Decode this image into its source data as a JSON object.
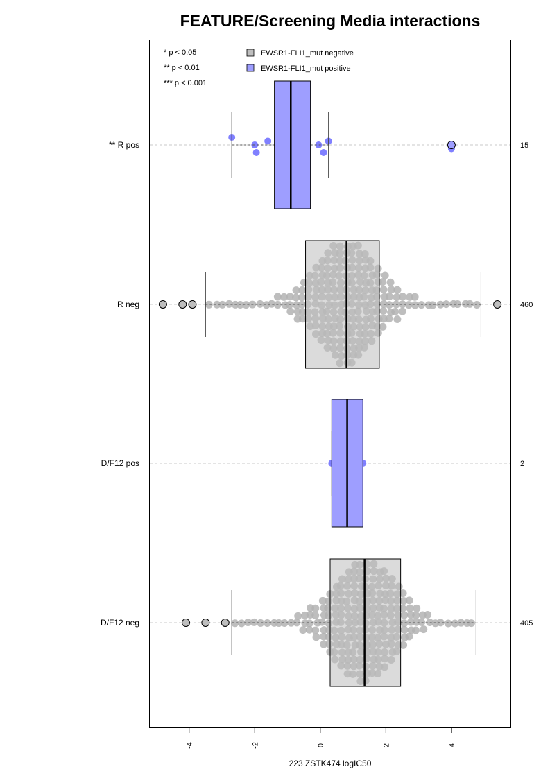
{
  "chart_data": {
    "type": "box",
    "title": "FEATURE/Screening Media interactions",
    "xlabel": "223 ZSTK474 logIC50",
    "ylabel": "",
    "xlim": [
      -5.2,
      5.8
    ],
    "x_ticks": [
      -4,
      -2,
      0,
      2,
      4
    ],
    "x_tick_labels": [
      "-4",
      "-2",
      "0",
      "2",
      "4"
    ],
    "orientation": "horizontal",
    "grid": "dashed horizontal lines at each group",
    "significance_legend": [
      "* p < 0.05",
      "** p < 0.01",
      "*** p < 0.001"
    ],
    "legend": {
      "placement": "top",
      "entries": [
        {
          "label": "EWSR1-FLI1_mut negative",
          "color": "#bebebe"
        },
        {
          "label": "EWSR1-FLI1_mut positive",
          "color": "#9e9eff"
        }
      ]
    },
    "groups": [
      {
        "label": "** R pos",
        "n": "15",
        "status": "positive",
        "q1": -1.4,
        "median": -0.9,
        "q3": -0.3,
        "whisker_low": -2.7,
        "whisker_high": 0.25,
        "outliers": [
          4.0
        ],
        "points": [
          -2.7,
          -2.0,
          -1.95,
          -1.6,
          -1.15,
          -1.2,
          -1.0,
          -0.9,
          -0.9,
          -0.55,
          -0.5,
          -0.05,
          0.1,
          0.25,
          4.0
        ]
      },
      {
        "label": "R neg",
        "n": "460",
        "status": "negative",
        "q1": -0.45,
        "median": 0.8,
        "q3": 1.8,
        "whisker_low": -3.5,
        "whisker_high": 4.9,
        "outliers": [
          -4.8,
          -4.2,
          -3.9,
          5.4
        ]
      },
      {
        "label": "D/F12 pos",
        "n": "2",
        "status": "positive",
        "q1": 0.35,
        "median": 0.82,
        "q3": 1.3,
        "whisker_low": 0.35,
        "whisker_high": 1.3,
        "outliers": [],
        "points": [
          0.35,
          1.3
        ]
      },
      {
        "label": "D/F12 neg",
        "n": "405",
        "status": "negative",
        "q1": 0.3,
        "median": 1.35,
        "q3": 2.45,
        "whisker_low": -2.7,
        "whisker_high": 4.75,
        "outliers": [
          -4.1,
          -3.5,
          -2.9
        ]
      }
    ],
    "colors": {
      "negative_fill": "#bebebe",
      "negative_points": "#b3b3b3",
      "positive_fill": "#9e9eff",
      "positive_points": "#6a6aff",
      "grid": "#c8c8c8"
    }
  }
}
